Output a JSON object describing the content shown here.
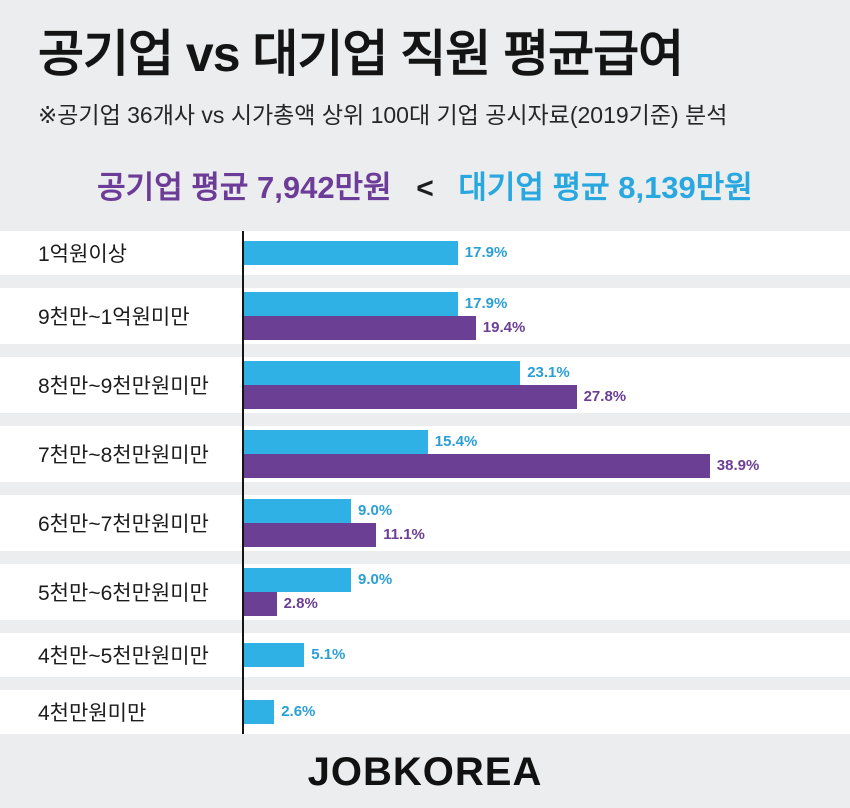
{
  "title": "공기업 vs 대기업 직원 평균급여",
  "subtitle": "※공기업 36개사 vs 시가총액 상위 100대 기업 공시자료(2019기준) 분석",
  "summary": {
    "left": "공기업 평균 7,942만원",
    "separator": "<",
    "right": "대기업 평균 8,139만원"
  },
  "footer": {
    "logo": "JOBKOREA"
  },
  "colors": {
    "background": "#ebedee",
    "row_band": "#ffffff",
    "blue": "#2fb1e5",
    "purple": "#6b3f94",
    "axis": "#141414"
  },
  "chart_data": {
    "type": "bar",
    "orientation": "horizontal",
    "title": "공기업 vs 대기업 직원 평균급여",
    "categories": [
      "1억원이상",
      "9천만~1억원미만",
      "8천만~9천만원미만",
      "7천만~8천만원미만",
      "6천만~7천만원미만",
      "5천만~6천만원미만",
      "4천만~5천만원미만",
      "4천만원미만"
    ],
    "series": [
      {
        "name": "대기업",
        "color": "#2fb1e5",
        "values": [
          17.9,
          17.9,
          23.1,
          15.4,
          9.0,
          9.0,
          5.1,
          2.6
        ]
      },
      {
        "name": "공기업",
        "color": "#6b3f94",
        "values": [
          null,
          19.4,
          27.8,
          38.9,
          11.1,
          2.8,
          null,
          null
        ]
      }
    ],
    "value_suffix": "%",
    "xlim": [
      0,
      40
    ],
    "grid": false,
    "legend_position": "none"
  }
}
